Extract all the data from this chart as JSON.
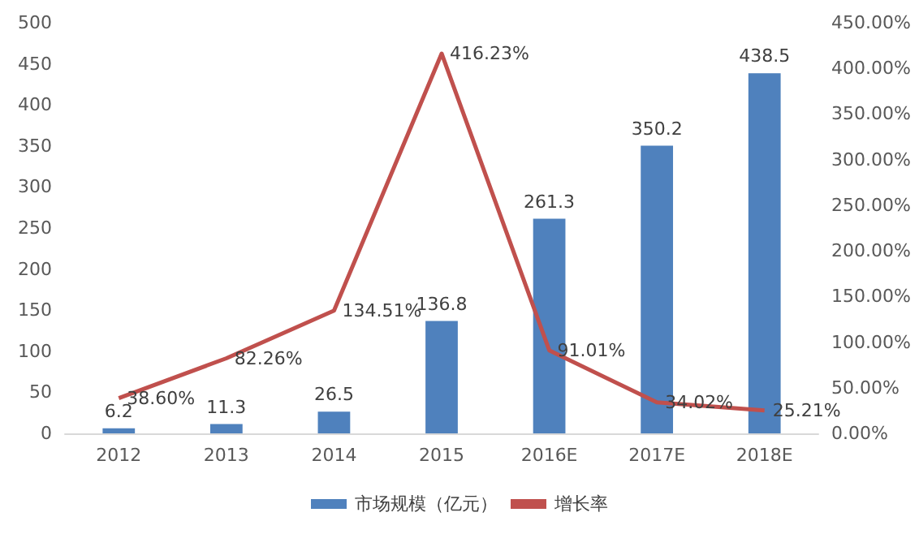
{
  "chart_data": {
    "type": "bar",
    "categories": [
      "2012",
      "2013",
      "2014",
      "2015",
      "2016E",
      "2017E",
      "2018E"
    ],
    "series": [
      {
        "name": "市场规模（亿元）",
        "color": "#4f81bd",
        "values": [
          6.2,
          11.3,
          26.5,
          136.8,
          261.3,
          350.2,
          438.5
        ],
        "value_labels": [
          "6.2",
          "11.3",
          "26.5",
          "136.8",
          "261.3",
          "350.2",
          "438.5"
        ]
      },
      {
        "name": "增长率",
        "type": "line",
        "axis": "y2",
        "color": "#c0504d",
        "values": [
          38.6,
          82.26,
          134.51,
          416.23,
          91.01,
          34.02,
          25.21
        ],
        "value_labels": [
          "38.60%",
          "82.26%",
          "134.51%",
          "416.23%",
          "91.01%",
          "34.02%",
          "25.21%"
        ]
      }
    ],
    "ylim": [
      0,
      500
    ],
    "yticks": [
      0,
      50,
      100,
      150,
      200,
      250,
      300,
      350,
      400,
      450,
      500
    ],
    "y2lim": [
      0,
      450
    ],
    "y2ticks": [
      {
        "value": 0,
        "label": "0.00%"
      },
      {
        "value": 50,
        "label": "50.00%"
      },
      {
        "value": 100,
        "label": "100.00%"
      },
      {
        "value": 150,
        "label": "150.00%"
      },
      {
        "value": 200,
        "label": "200.00%"
      },
      {
        "value": 250,
        "label": "250.00%"
      },
      {
        "value": 300,
        "label": "300.00%"
      },
      {
        "value": 350,
        "label": "350.00%"
      },
      {
        "value": 400,
        "label": "400.00%"
      },
      {
        "value": 450,
        "label": "450.00%"
      }
    ],
    "grid": false,
    "legend": "bottom",
    "marker": "none",
    "line_style": "solid"
  }
}
